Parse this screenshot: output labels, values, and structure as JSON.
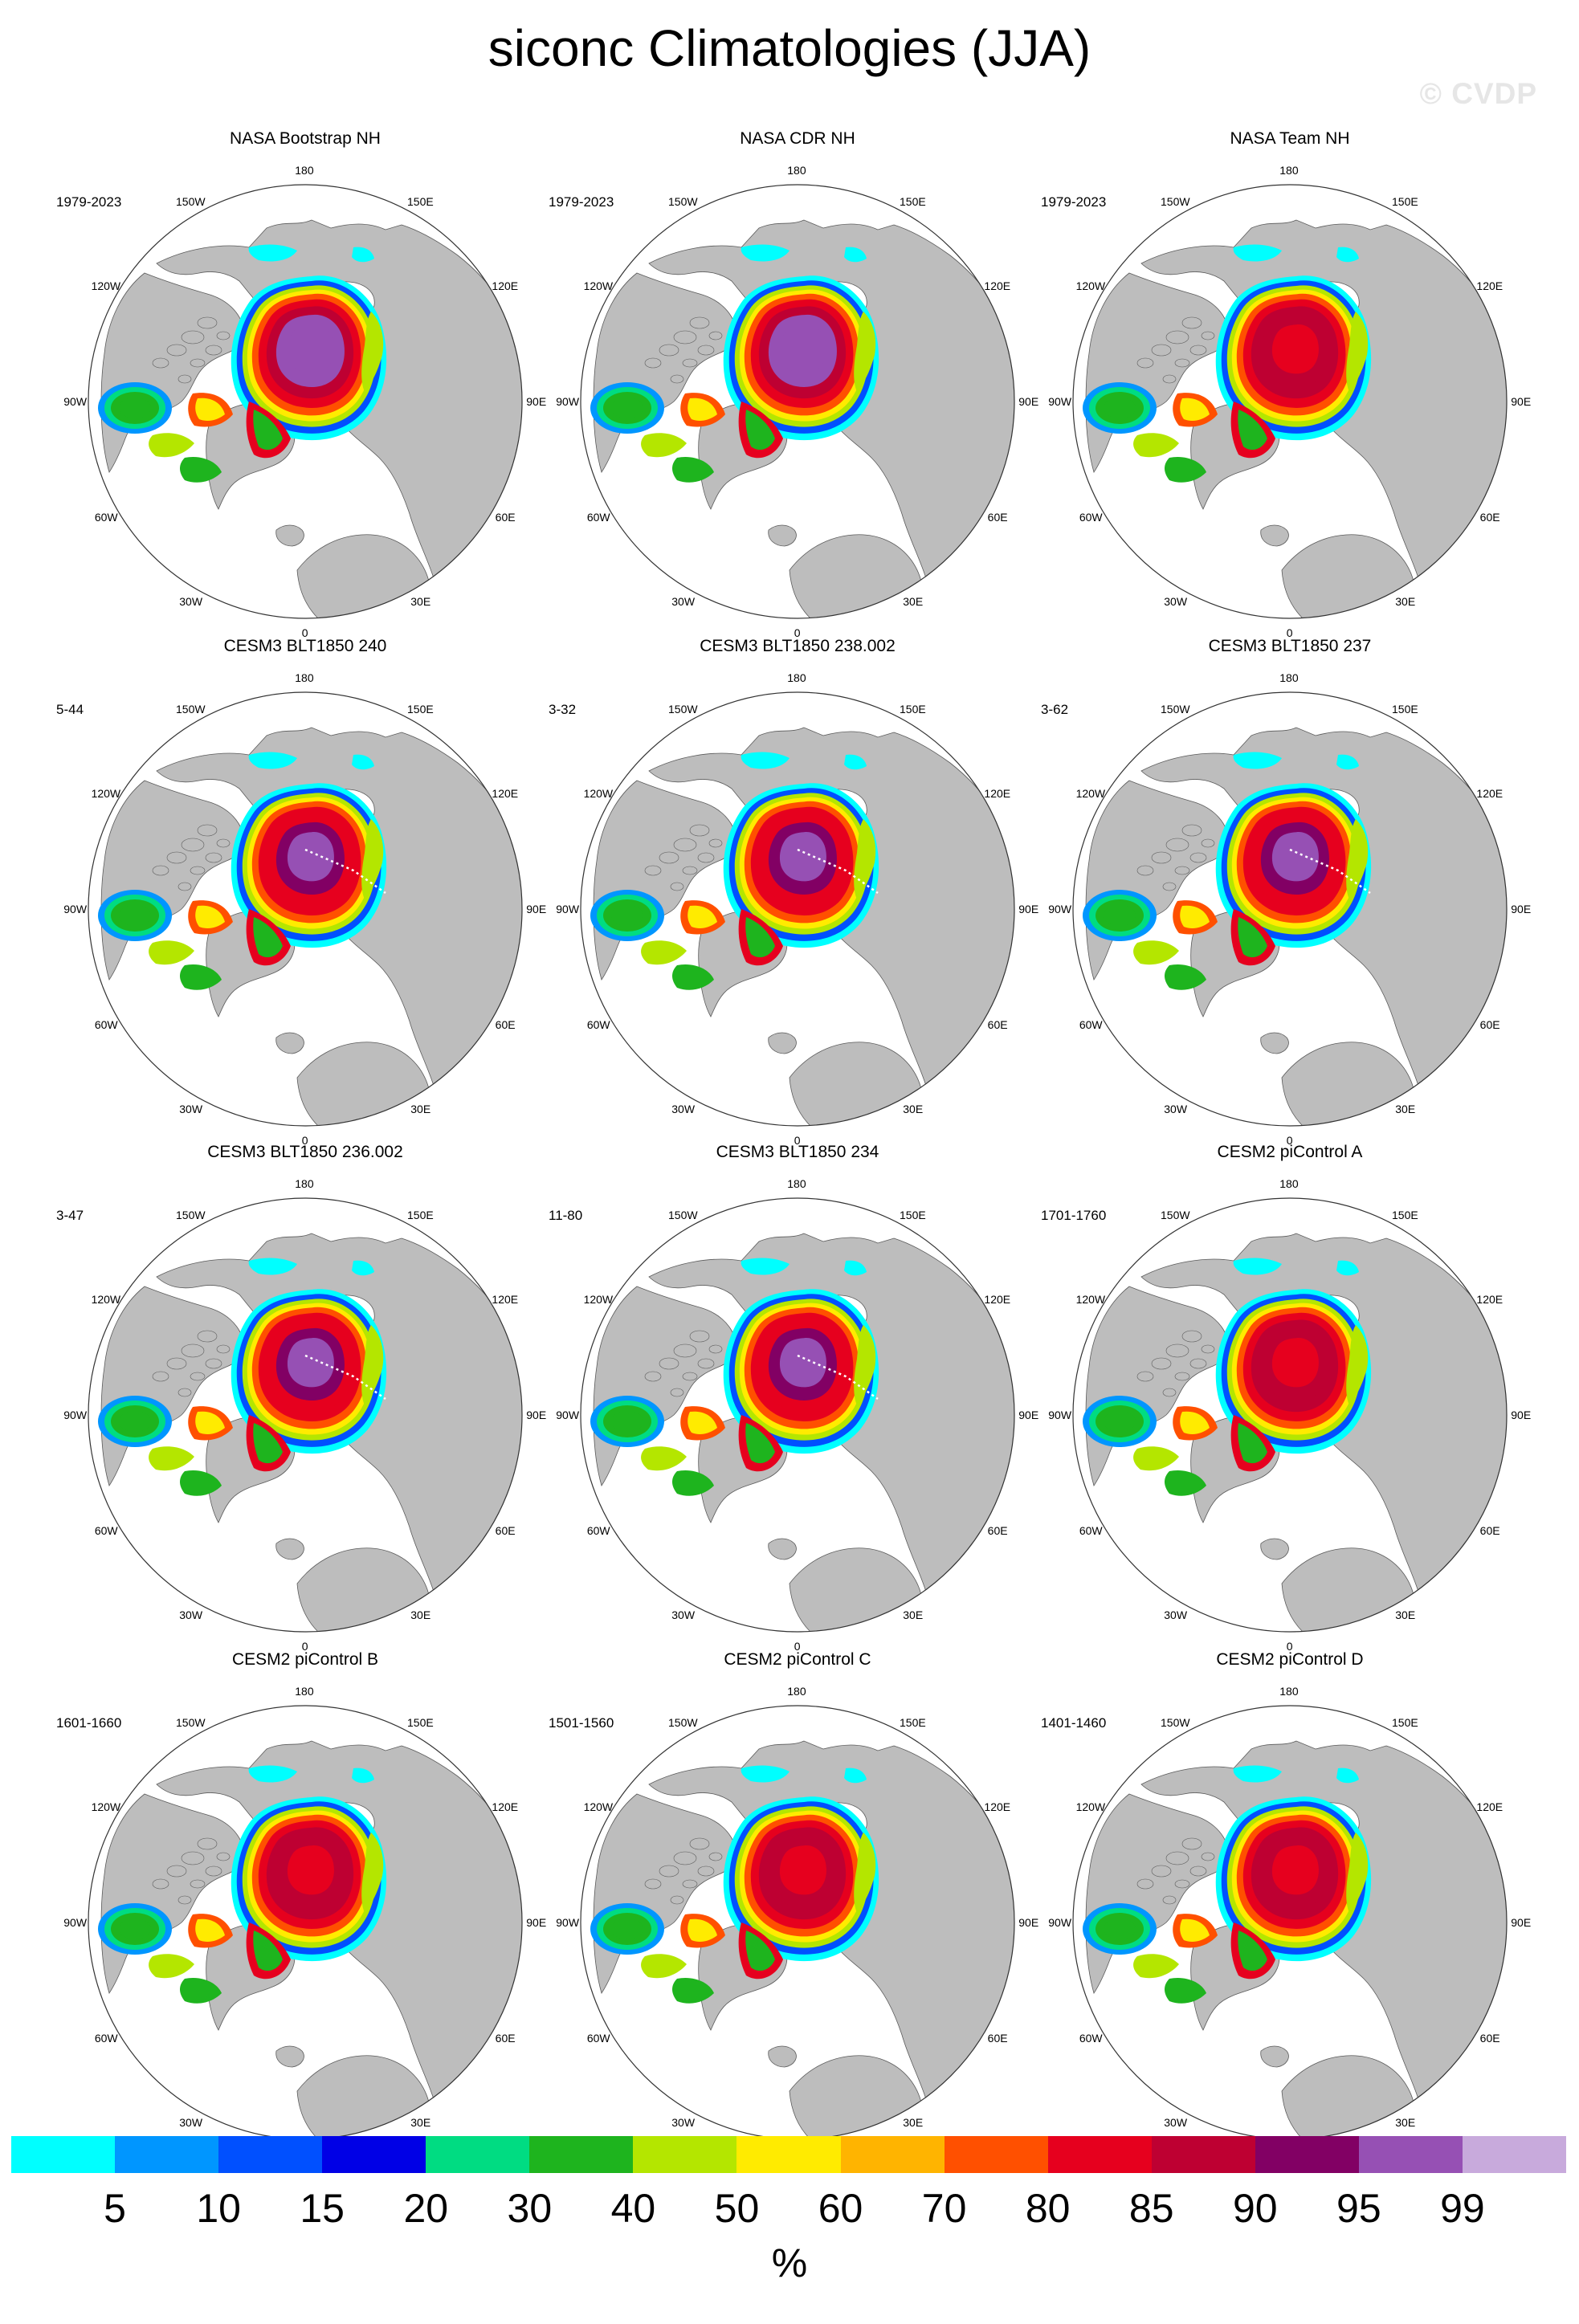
{
  "title": "siconc Climatologies (JJA)",
  "watermark": "© CVDP",
  "lon_labels": [
    "180",
    "150E",
    "120E",
    "90E",
    "60E",
    "30E",
    "0",
    "30W",
    "60W",
    "90W",
    "120W",
    "150W"
  ],
  "panels": [
    {
      "title": "NASA Bootstrap NH",
      "years": "1979-2023"
    },
    {
      "title": "NASA CDR NH",
      "years": "1979-2023"
    },
    {
      "title": "NASA Team NH",
      "years": "1979-2023"
    },
    {
      "title": "CESM3 BLT1850 240",
      "years": "5-44"
    },
    {
      "title": "CESM3 BLT1850 238.002",
      "years": "3-32"
    },
    {
      "title": "CESM3 BLT1850 237",
      "years": "3-62"
    },
    {
      "title": "CESM3 BLT1850 236.002",
      "years": "3-47"
    },
    {
      "title": "CESM3 BLT1850 234",
      "years": "11-80"
    },
    {
      "title": "CESM2 piControl A",
      "years": "1701-1760"
    },
    {
      "title": "CESM2 piControl B",
      "years": "1601-1660"
    },
    {
      "title": "CESM2 piControl C",
      "years": "1501-1560"
    },
    {
      "title": "CESM2 piControl D",
      "years": "1401-1460"
    }
  ],
  "colorbar": {
    "colors": [
      "#00ffff",
      "#0096ff",
      "#0050ff",
      "#0000e6",
      "#00dc82",
      "#1eb41e",
      "#b4e600",
      "#ffeb00",
      "#ffb400",
      "#ff5000",
      "#e6001e",
      "#be0032",
      "#820064",
      "#9650b4",
      "#c8aadc"
    ],
    "ticks": [
      "5",
      "10",
      "15",
      "20",
      "30",
      "40",
      "50",
      "60",
      "70",
      "80",
      "85",
      "90",
      "95",
      "99"
    ],
    "unit": "%"
  }
}
